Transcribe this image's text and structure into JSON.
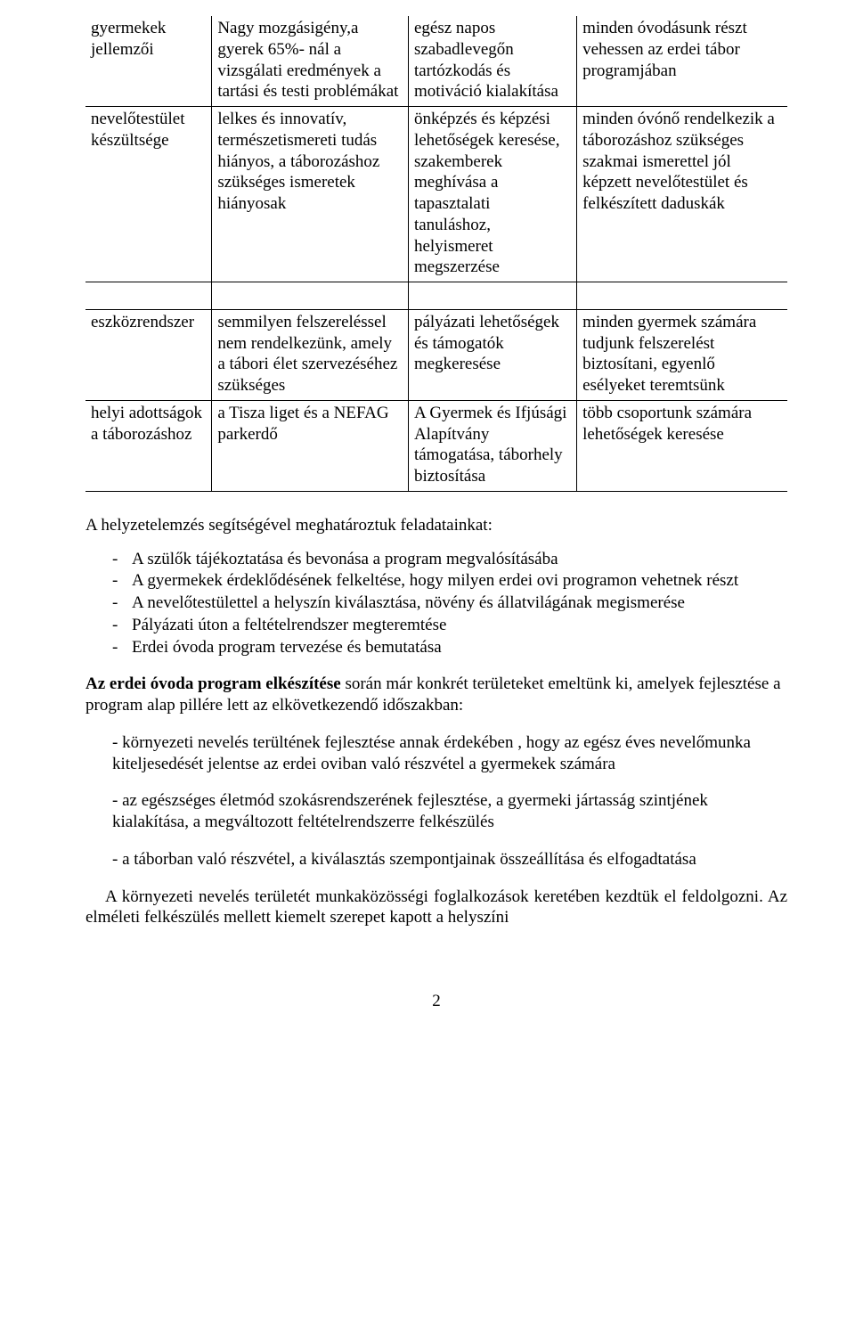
{
  "table": {
    "rows": [
      {
        "c1": "gyermekek jellemzői",
        "c2": "Nagy mozgásigény,a gyerek 65%- nál a vizsgálati eredmények a tartási és testi problémákat",
        "c3": "egész napos szabadlevegőn tartózkodás és motiváció kialakítása",
        "c4": "minden óvodásunk részt vehessen az erdei tábor programjában"
      },
      {
        "c1": "nevelőtestület készültsége",
        "c2": "lelkes és innovatív, természetismereti tudás hiányos, a táborozáshoz szükséges ismeretek hiányosak",
        "c3": "önképzés és képzési lehetőségek keresése, szakemberek meghívása a tapasztalati tanuláshoz, helyismeret megszerzése",
        "c4": "minden óvónő rendelkezik a táborozáshoz szükséges szakmai ismerettel jól képzett nevelőtestület és felkészített daduskák"
      },
      {
        "c1": "eszközrendszer",
        "c2": "semmilyen felszereléssel nem rendelkezünk, amely a tábori élet szervezéséhez szükséges",
        "c3": "pályázati lehetőségek és támogatók megkeresése",
        "c4": "minden gyermek számára tudjunk felszerelést biztosítani, egyenlő esélyeket teremtsünk"
      },
      {
        "c1": "helyi adottságok a táborozáshoz",
        "c2": "a Tisza liget és a NEFAG parkerdő",
        "c3": "A Gyermek és Ifjúsági Alapítvány támogatása, táborhely biztosítása",
        "c4": "több csoportunk számára lehetőségek keresése"
      }
    ]
  },
  "intro": "A helyzetelemzés segítségével meghatároztuk feladatainkat:",
  "tasks": [
    "A szülők tájékoztatása és bevonása a program megvalósításába",
    "A gyermekek érdeklődésének felkeltése, hogy milyen erdei ovi programon vehetnek részt",
    "A nevelőtestülettel a helyszín kiválasztása, növény és állatvilágának megismerése",
    "Pályázati úton a feltételrendszer megteremtése",
    "Erdei óvoda program tervezése és bemutatása"
  ],
  "bold_lead_strong": "Az  erdei óvoda  program elkészítése",
  "bold_lead_rest": " során  már konkrét területeket emeltünk ki, amelyek fejlesztése a program alap pillére lett az elkövetkezendő időszakban:",
  "bullets2": [
    "- környezeti nevelés terültének fejlesztése annak érdekében , hogy az egész éves nevelőmunka kiteljesedését jelentse az erdei oviban való részvétel a gyermekek számára",
    "- az egészséges életmód szokásrendszerének fejlesztése, a gyermeki jártasság szintjének kialakítása, a megváltozott feltételrendszerre felkészülés",
    "- a táborban való részvétel, a kiválasztás szempontjainak összeállítása és elfogadtatása"
  ],
  "closing": "A környezeti nevelés területét munkaközösségi foglalkozások keretében kezdtük el feldolgozni. Az elméleti felkészülés mellett kiemelt szerepet kapott a helyszíni",
  "page": "2"
}
